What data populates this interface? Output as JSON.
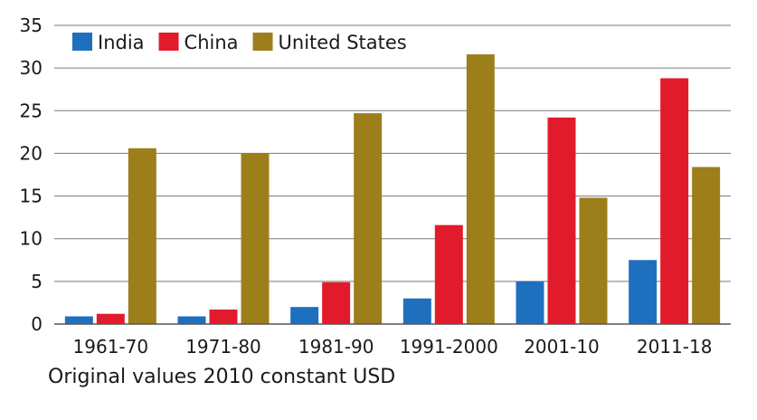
{
  "chart_data": {
    "type": "bar",
    "title": "",
    "xlabel": "",
    "ylabel": "",
    "categories": [
      "1961-70",
      "1971-80",
      "1981-90",
      "1991-2000",
      "2001-10",
      "2011-18"
    ],
    "series": [
      {
        "name": "India",
        "color": "#1f6fbf",
        "values": [
          0.9,
          0.9,
          2.0,
          3.0,
          5.0,
          7.5
        ]
      },
      {
        "name": "China",
        "color": "#e21b2c",
        "values": [
          1.2,
          1.7,
          4.9,
          11.6,
          24.2,
          28.8
        ]
      },
      {
        "name": "United States",
        "color": "#9c7e1b",
        "values": [
          20.6,
          20.0,
          24.7,
          31.6,
          14.8,
          18.4
        ]
      }
    ],
    "ylim": [
      0,
      35
    ],
    "yticks": [
      0,
      5,
      10,
      15,
      20,
      25,
      30,
      35
    ],
    "grid": true,
    "legend": "top-left"
  },
  "caption": "Original values 2010 constant USD"
}
